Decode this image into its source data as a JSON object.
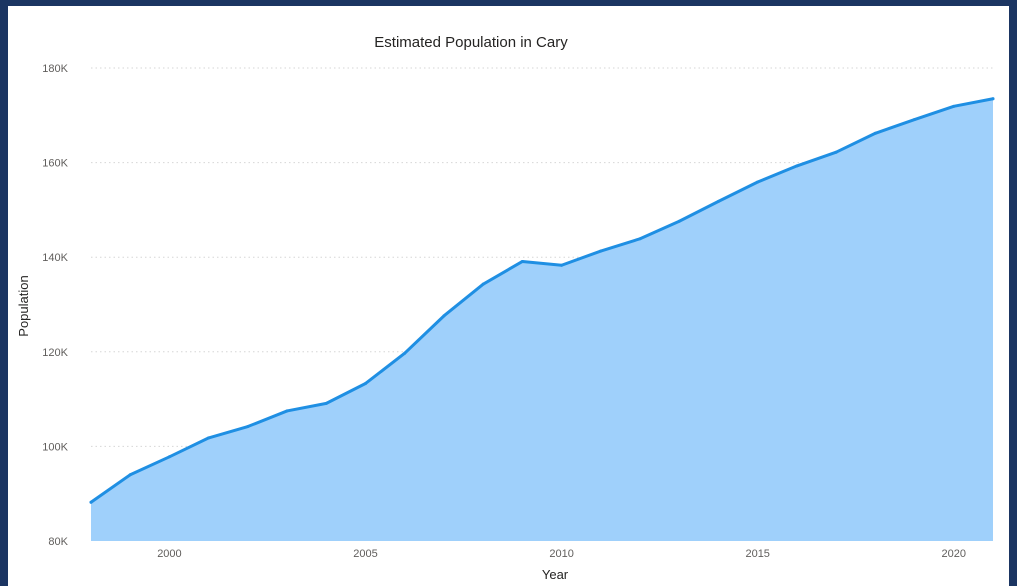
{
  "chart_data": {
    "type": "area",
    "title": "Estimated Population in Cary",
    "xlabel": "Year",
    "ylabel": "Population",
    "xlim": [
      1998,
      2021
    ],
    "ylim": [
      80000,
      180000
    ],
    "x_ticks": [
      2000,
      2005,
      2010,
      2015,
      2020
    ],
    "y_ticks": [
      80000,
      100000,
      120000,
      140000,
      160000,
      180000
    ],
    "y_tick_labels": [
      "80K",
      "100K",
      "120K",
      "140K",
      "160K",
      "180K"
    ],
    "grid": true,
    "legend": "none",
    "colors": {
      "line": "#1f8fe3",
      "area": "#9fd0fb",
      "background": "#1b3562"
    },
    "x": [
      1998,
      1999,
      2000,
      2001,
      2002,
      2003,
      2004,
      2005,
      2006,
      2007,
      2008,
      2009,
      2010,
      2011,
      2012,
      2013,
      2014,
      2015,
      2016,
      2017,
      2018,
      2019,
      2020,
      2021
    ],
    "values": [
      88200,
      94000,
      97800,
      101800,
      104200,
      107500,
      109100,
      113300,
      119700,
      127600,
      134300,
      139100,
      138300,
      141300,
      143900,
      147600,
      151800,
      155900,
      159300,
      162200,
      166200,
      169100,
      171900,
      173500
    ]
  }
}
